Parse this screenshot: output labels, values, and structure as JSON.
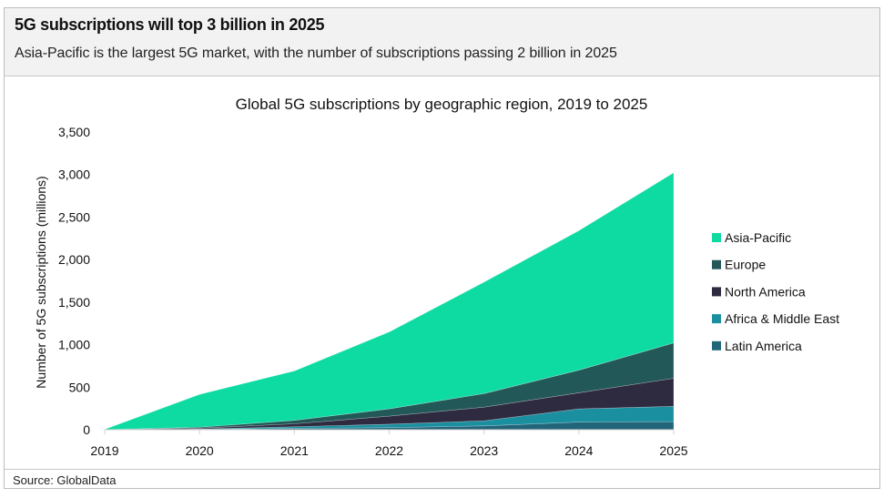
{
  "header": {
    "title": "5G subscriptions will top 3 billion in 2025",
    "subtitle": "Asia-Pacific is the largest 5G market, with the number of subscriptions passing 2 billion in 2025"
  },
  "footer": {
    "source": "Source: GlobalData"
  },
  "chart_data": {
    "type": "area",
    "stacked": true,
    "title": "Global 5G subscriptions by geographic region, 2019 to 2025",
    "xlabel": "",
    "ylabel": "Number of 5G subscriptions (millions)",
    "categories": [
      "2019",
      "2020",
      "2021",
      "2022",
      "2023",
      "2024",
      "2025"
    ],
    "ylim": [
      0,
      3500
    ],
    "yticks": [
      0,
      500,
      1000,
      1500,
      2000,
      2500,
      3000,
      3500
    ],
    "ytick_labels": [
      "0",
      "500",
      "1,000",
      "1,500",
      "2,000",
      "2,500",
      "3,000",
      "3,500"
    ],
    "grid": false,
    "legend_position": "right",
    "series": [
      {
        "name": "Latin America",
        "color": "#22657A",
        "values": [
          0,
          3,
          15,
          25,
          45,
          90,
          95
        ]
      },
      {
        "name": "Africa & Middle East",
        "color": "#1A8FA0",
        "values": [
          0,
          5,
          20,
          40,
          60,
          155,
          180
        ]
      },
      {
        "name": "North America",
        "color": "#2E2A3F",
        "values": [
          1,
          10,
          35,
          95,
          160,
          190,
          330
        ]
      },
      {
        "name": "Europe",
        "color": "#235858",
        "values": [
          0,
          12,
          40,
          85,
          160,
          265,
          415
        ]
      },
      {
        "name": "Asia-Pacific",
        "color": "#0EDBA2",
        "values": [
          3,
          385,
          580,
          905,
          1310,
          1640,
          2000
        ]
      }
    ],
    "legend_order": [
      "Asia-Pacific",
      "Europe",
      "North America",
      "Africa & Middle East",
      "Latin America"
    ]
  }
}
